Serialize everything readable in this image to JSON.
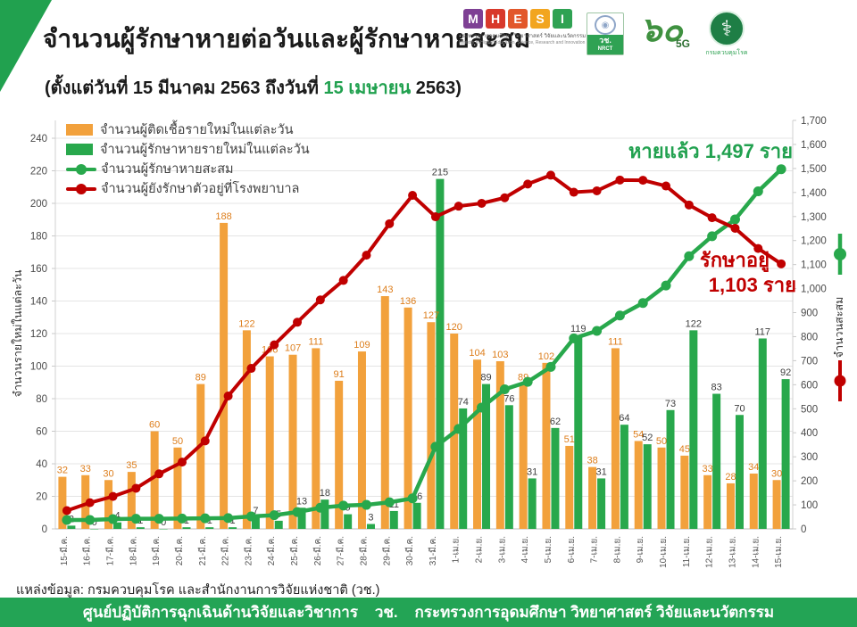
{
  "header": {
    "title": "จำนวนผู้รักษาหายต่อวันและผู้รักษาหายสะสม",
    "subtitle_prefix": "(ตั้งแต่วันที่ 15 มีนาคม 2563 ถึงวันที่ ",
    "subtitle_highlight": "15 เมษายน",
    "subtitle_suffix": " 2563)"
  },
  "logos": {
    "mhesi_letters": [
      "M",
      "H",
      "E",
      "S",
      "I"
    ],
    "mhesi_thai": "กระทรวงการอุดมศึกษา วิทยาศาสตร์ วิจัยและนวัตกรรม",
    "mhesi_eng": "Ministry of Higher Education, Science, Research and Innovation",
    "nrct_label": "วช.",
    "nrct_sub": "NRCT",
    "anniv_number": "๖๐",
    "anniv_5g": "5G",
    "ddc_label": "กรมควบคุมโรค"
  },
  "chart_data": {
    "type": "combo bar+line",
    "categories": [
      "15-มี.ค.",
      "16-มี.ค.",
      "17-มี.ค.",
      "18-มี.ค.",
      "19-มี.ค.",
      "20-มี.ค.",
      "21-มี.ค.",
      "22-มี.ค.",
      "23-มี.ค.",
      "24-มี.ค.",
      "25-มี.ค.",
      "26-มี.ค.",
      "27-มี.ค.",
      "28-มี.ค.",
      "29-มี.ค.",
      "30-มี.ค.",
      "31-มี.ค.",
      "1-เม.ย.",
      "2-เม.ย.",
      "3-เม.ย.",
      "4-เม.ย.",
      "5-เม.ย.",
      "6-เม.ย.",
      "7-เม.ย.",
      "8-เม.ย.",
      "9-เม.ย.",
      "10-เม.ย.",
      "11-เม.ย.",
      "12-เม.ย.",
      "13-เม.ย.",
      "14-เม.ย.",
      "15-เม.ย."
    ],
    "series": [
      {
        "name": "จำนวนผู้ติดเชื้อรายใหม่ในแต่ละวัน",
        "type": "bar",
        "axis": "left",
        "color": "#f2a13c",
        "values": [
          32,
          33,
          30,
          35,
          60,
          50,
          89,
          188,
          122,
          106,
          107,
          111,
          91,
          109,
          143,
          136,
          127,
          120,
          104,
          103,
          89,
          102,
          51,
          38,
          111,
          54,
          50,
          45,
          33,
          28,
          34,
          30
        ]
      },
      {
        "name": "จำนวนผู้รักษาหายรายใหม่ในแต่ละวัน",
        "type": "bar",
        "axis": "left",
        "color": "#28a84c",
        "values": [
          2,
          0,
          4,
          1,
          0,
          1,
          1,
          1,
          7,
          5,
          13,
          18,
          9,
          3,
          11,
          16,
          215,
          74,
          89,
          76,
          31,
          62,
          119,
          31,
          64,
          52,
          73,
          122,
          83,
          70,
          117,
          92
        ]
      },
      {
        "name": "จำนวนผู้รักษาหายสะสม",
        "type": "line",
        "axis": "right",
        "color": "#28a84c",
        "values": [
          37,
          37,
          41,
          42,
          42,
          43,
          44,
          45,
          52,
          57,
          70,
          88,
          97,
          100,
          111,
          127,
          342,
          416,
          505,
          581,
          612,
          674,
          793,
          824,
          888,
          940,
          1013,
          1135,
          1218,
          1288,
          1405,
          1497
        ]
      },
      {
        "name": "จำนวนผู้ยังรักษาตัวอยู่ที่โรงพยาบาล",
        "type": "line",
        "axis": "right",
        "color": "#c00000",
        "values": [
          76,
          109,
          135,
          169,
          229,
          278,
          366,
          553,
          668,
          766,
          860,
          953,
          1034,
          1139,
          1270,
          1388,
          1299,
          1343,
          1355,
          1378,
          1435,
          1472,
          1401,
          1407,
          1452,
          1451,
          1427,
          1348,
          1295,
          1251,
          1167,
          1103
        ]
      }
    ],
    "left_axis": {
      "label": "จำนวนรายใหม่ในแต่ละวัน",
      "min": 0,
      "max": 240,
      "step": 20
    },
    "right_axis": {
      "label": "จำนวนสะสม",
      "min": 0,
      "max": 1700,
      "step": 100
    },
    "grid": true,
    "legend_position": "top-left"
  },
  "annotations": {
    "recovered": "หายแล้ว 1,497 ราย",
    "in_care_line1": "รักษาอยู่",
    "in_care_line2": "1,103 ราย"
  },
  "colors": {
    "orange": "#f2a13c",
    "green": "#28a84c",
    "red": "#c00000",
    "orange_label": "#dd7e1c",
    "dark_label": "#3f3f3f",
    "accent_green": "#21a14f"
  },
  "source": "แหล่งข้อมูล: กรมควบคุมโรค และสำนักงานการวิจัยแห่งชาติ (วช.)",
  "footer": "ศูนย์ปฏิบัติการฉุกเฉินด้านวิจัยและวิชาการ    วช.    กระทรวงการอุดมศึกษา วิทยาศาสตร์ วิจัยและนวัตกรรม"
}
